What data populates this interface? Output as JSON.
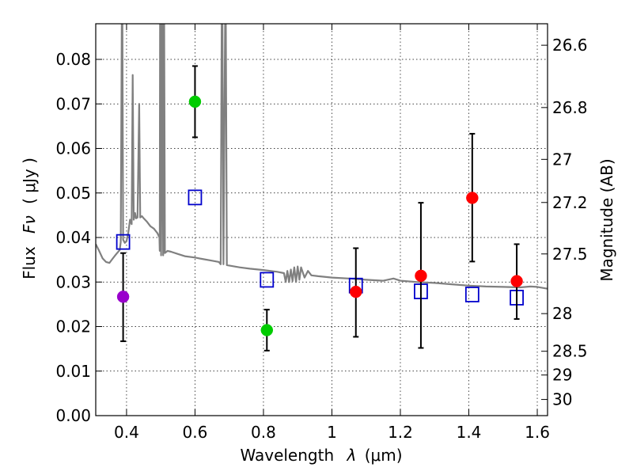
{
  "chart_data": {
    "type": "scatter",
    "xlabel_main": "Wavelength",
    "xlabel_symbol": "λ",
    "xlabel_unit": "(μm)",
    "ylabel_main": "Flux",
    "ylabel_symbol": "Fν",
    "ylabel_unit": "( μJy )",
    "ylabel_right": "Magnitude (AB)",
    "xlim": [
      0.31,
      1.63
    ],
    "ylim": [
      0.0,
      0.088
    ],
    "grid": true,
    "xticks": [
      {
        "value": 0.4,
        "label": "0.4"
      },
      {
        "value": 0.6,
        "label": "0.6"
      },
      {
        "value": 0.8,
        "label": "0.8"
      },
      {
        "value": 1.0,
        "label": "1"
      },
      {
        "value": 1.2,
        "label": "1.2"
      },
      {
        "value": 1.4,
        "label": "1.4"
      },
      {
        "value": 1.6,
        "label": "1.6"
      }
    ],
    "yticks": [
      {
        "value": 0.0,
        "label": "0.00"
      },
      {
        "value": 0.01,
        "label": "0.01"
      },
      {
        "value": 0.02,
        "label": "0.02"
      },
      {
        "value": 0.03,
        "label": "0.03"
      },
      {
        "value": 0.04,
        "label": "0.04"
      },
      {
        "value": 0.05,
        "label": "0.05"
      },
      {
        "value": 0.06,
        "label": "0.06"
      },
      {
        "value": 0.07,
        "label": "0.07"
      },
      {
        "value": 0.08,
        "label": "0.08"
      }
    ],
    "right_ticks": [
      {
        "mag": 26.6,
        "label": "26.6"
      },
      {
        "mag": 26.8,
        "label": "26.8"
      },
      {
        "mag": 27.0,
        "label": "27"
      },
      {
        "mag": 27.2,
        "label": "27.2"
      },
      {
        "mag": 27.5,
        "label": "27.5"
      },
      {
        "mag": 28.0,
        "label": "28"
      },
      {
        "mag": 28.5,
        "label": "28.5"
      },
      {
        "mag": 29.0,
        "label": "29"
      },
      {
        "mag": 30.0,
        "label": "30"
      }
    ],
    "series": [
      {
        "name": "model-spectrum",
        "kind": "line",
        "color": "#808080",
        "points": [
          [
            0.31,
            0.0385
          ],
          [
            0.32,
            0.037
          ],
          [
            0.33,
            0.0353
          ],
          [
            0.34,
            0.0345
          ],
          [
            0.35,
            0.0343
          ],
          [
            0.36,
            0.0353
          ],
          [
            0.37,
            0.0363
          ],
          [
            0.38,
            0.0372
          ],
          [
            0.383,
            0.039
          ],
          [
            0.386,
            0.088
          ],
          [
            0.388,
            0.088
          ],
          [
            0.39,
            0.0395
          ],
          [
            0.395,
            0.0388
          ],
          [
            0.4,
            0.0392
          ],
          [
            0.405,
            0.041
          ],
          [
            0.41,
            0.044
          ],
          [
            0.415,
            0.043
          ],
          [
            0.418,
            0.0765
          ],
          [
            0.421,
            0.044
          ],
          [
            0.425,
            0.0455
          ],
          [
            0.428,
            0.0443
          ],
          [
            0.432,
            0.0445
          ],
          [
            0.437,
            0.07
          ],
          [
            0.44,
            0.0445
          ],
          [
            0.445,
            0.0448
          ],
          [
            0.45,
            0.0443
          ],
          [
            0.46,
            0.0435
          ],
          [
            0.47,
            0.0425
          ],
          [
            0.48,
            0.042
          ],
          [
            0.49,
            0.041
          ],
          [
            0.496,
            0.04
          ],
          [
            0.497,
            0.037
          ],
          [
            0.498,
            0.088
          ],
          [
            0.5,
            0.088
          ],
          [
            0.501,
            0.036
          ],
          [
            0.505,
            0.088
          ],
          [
            0.507,
            0.036
          ],
          [
            0.51,
            0.088
          ],
          [
            0.512,
            0.0365
          ],
          [
            0.52,
            0.037
          ],
          [
            0.53,
            0.0368
          ],
          [
            0.55,
            0.0363
          ],
          [
            0.57,
            0.0358
          ],
          [
            0.6,
            0.0355
          ],
          [
            0.62,
            0.0352
          ],
          [
            0.65,
            0.0348
          ],
          [
            0.67,
            0.0345
          ],
          [
            0.675,
            0.034
          ],
          [
            0.678,
            0.088
          ],
          [
            0.68,
            0.088
          ],
          [
            0.683,
            0.034
          ],
          [
            0.688,
            0.088
          ],
          [
            0.69,
            0.088
          ],
          [
            0.693,
            0.0338
          ],
          [
            0.7,
            0.0337
          ],
          [
            0.73,
            0.0333
          ],
          [
            0.76,
            0.033
          ],
          [
            0.8,
            0.0327
          ],
          [
            0.84,
            0.0323
          ],
          [
            0.86,
            0.032
          ],
          [
            0.865,
            0.03
          ],
          [
            0.87,
            0.0325
          ],
          [
            0.875,
            0.03
          ],
          [
            0.88,
            0.0328
          ],
          [
            0.885,
            0.0302
          ],
          [
            0.89,
            0.0333
          ],
          [
            0.895,
            0.03
          ],
          [
            0.9,
            0.0335
          ],
          [
            0.905,
            0.0305
          ],
          [
            0.91,
            0.0333
          ],
          [
            0.92,
            0.031
          ],
          [
            0.93,
            0.0325
          ],
          [
            0.94,
            0.0315
          ],
          [
            0.96,
            0.0313
          ],
          [
            1.0,
            0.031
          ],
          [
            1.05,
            0.0308
          ],
          [
            1.1,
            0.0305
          ],
          [
            1.15,
            0.0303
          ],
          [
            1.18,
            0.0308
          ],
          [
            1.2,
            0.0303
          ],
          [
            1.25,
            0.03
          ],
          [
            1.3,
            0.0298
          ],
          [
            1.35,
            0.0295
          ],
          [
            1.4,
            0.0292
          ],
          [
            1.45,
            0.029
          ],
          [
            1.5,
            0.0289
          ],
          [
            1.55,
            0.0288
          ],
          [
            1.58,
            0.029
          ],
          [
            1.6,
            0.0289
          ],
          [
            1.63,
            0.0285
          ]
        ]
      },
      {
        "name": "model-photometry",
        "kind": "open-square",
        "color": "#0000cc",
        "x": [
          0.39,
          0.6,
          0.81,
          1.07,
          1.26,
          1.41,
          1.54
        ],
        "y": [
          0.039,
          0.049,
          0.0305,
          0.0292,
          0.0279,
          0.0272,
          0.0265
        ]
      },
      {
        "name": "observed-violet",
        "kind": "filled-circle",
        "color": "#9900cc",
        "x": [
          0.39
        ],
        "y": [
          0.0267
        ],
        "err_low": [
          0.0167
        ],
        "err_high": [
          0.0365
        ]
      },
      {
        "name": "observed-green",
        "kind": "filled-circle",
        "color": "#00cc00",
        "x": [
          0.6,
          0.81
        ],
        "y": [
          0.0705,
          0.0192
        ],
        "err_low": [
          0.0625,
          0.0146
        ],
        "err_high": [
          0.0785,
          0.0238
        ]
      },
      {
        "name": "observed-red",
        "kind": "filled-circle",
        "color": "#ff0000",
        "x": [
          1.07,
          1.26,
          1.41,
          1.54
        ],
        "y": [
          0.0278,
          0.0314,
          0.0489,
          0.0302
        ],
        "err_low": [
          0.0177,
          0.0152,
          0.0346,
          0.0217
        ],
        "err_high": [
          0.0376,
          0.0478,
          0.0633,
          0.0385
        ]
      }
    ]
  }
}
